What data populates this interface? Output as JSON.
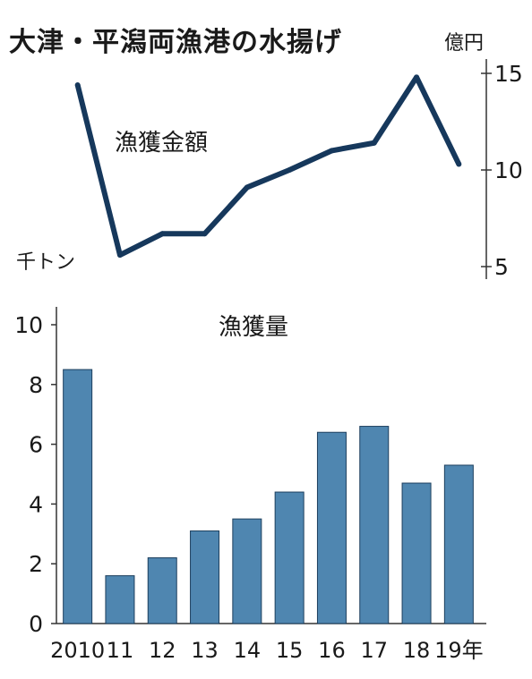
{
  "title": "大津・平潟両漁港の水揚げ",
  "chart_data": [
    {
      "type": "line",
      "name": "漁獲金額",
      "unit": "億円",
      "x": [
        "2010",
        "11",
        "12",
        "13",
        "14",
        "15",
        "16",
        "17",
        "18",
        "19"
      ],
      "values": [
        14.4,
        5.6,
        6.7,
        6.7,
        9.1,
        10.0,
        11.0,
        11.4,
        14.8,
        10.3
      ],
      "ylim": [
        5,
        15
      ],
      "yticks": [
        5,
        10,
        15
      ],
      "axis_side": "right",
      "color": "#16385c"
    },
    {
      "type": "bar",
      "name": "漁獲量",
      "unit": "千トン",
      "categories": [
        "2010",
        "11",
        "12",
        "13",
        "14",
        "15",
        "16",
        "17",
        "18",
        "19年"
      ],
      "values": [
        8.5,
        1.6,
        2.2,
        3.1,
        3.5,
        4.4,
        6.4,
        6.6,
        4.7,
        5.3
      ],
      "ylim": [
        0,
        10
      ],
      "yticks": [
        0,
        2,
        4,
        6,
        8,
        10
      ],
      "axis_side": "left",
      "color": "#4f86b0"
    }
  ]
}
